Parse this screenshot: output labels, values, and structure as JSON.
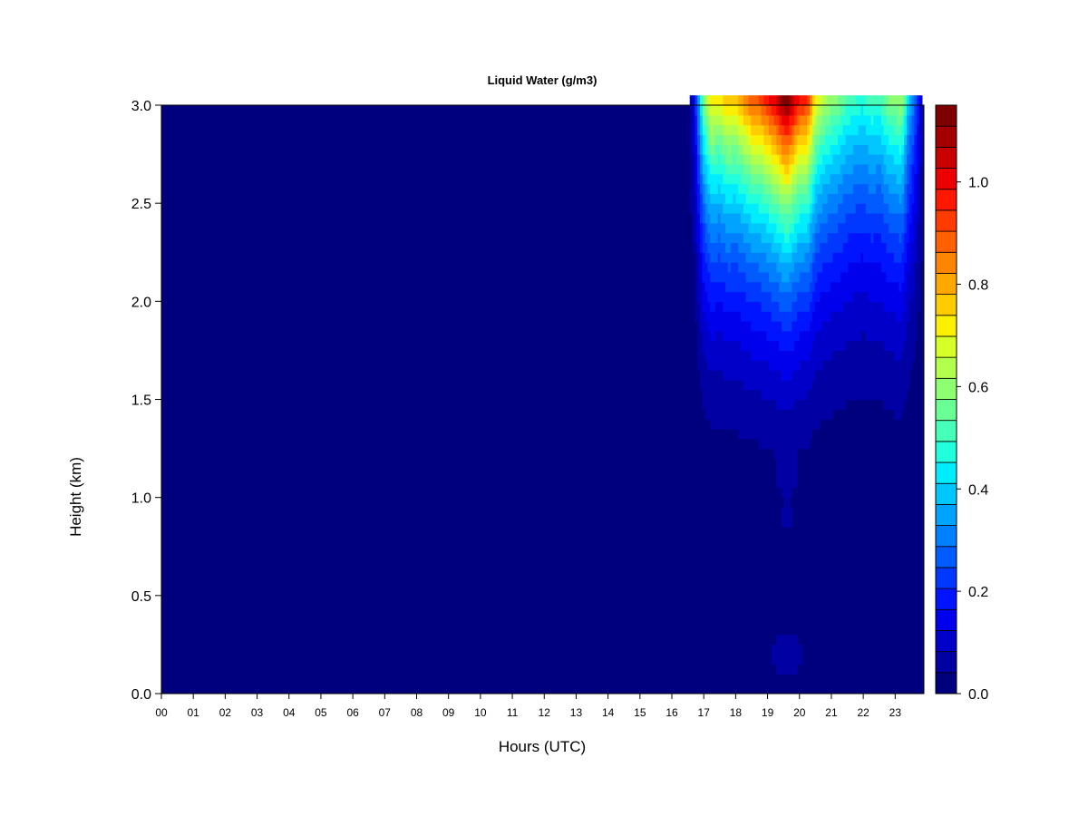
{
  "chart_data": {
    "type": "heatmap",
    "title": "Liquid Water (g/m3)",
    "xlabel": "Hours (UTC)",
    "ylabel": "Height (km)",
    "xlim": [
      0,
      23.9
    ],
    "ylim": [
      0,
      3.0
    ],
    "x_ticks": [
      "00",
      "01",
      "02",
      "03",
      "04",
      "05",
      "06",
      "07",
      "08",
      "09",
      "10",
      "11",
      "12",
      "13",
      "14",
      "15",
      "16",
      "17",
      "18",
      "19",
      "20",
      "21",
      "22",
      "23"
    ],
    "y_ticks": [
      "0.0",
      "0.5",
      "1.0",
      "1.5",
      "2.0",
      "2.5",
      "3.0"
    ],
    "colorbar": {
      "range": [
        0,
        1.15
      ],
      "ticks": [
        0.0,
        0.2,
        0.4,
        0.6,
        0.8,
        1.0
      ],
      "tick_labels": [
        "0.0",
        "0.2",
        "0.4",
        "0.6",
        "0.8",
        "1.0"
      ],
      "colors": [
        "#00007f",
        "#0000a3",
        "#0000c8",
        "#0000ed",
        "#0014ff",
        "#0038ff",
        "#005cff",
        "#0080ff",
        "#00a4ff",
        "#00c8ff",
        "#00ecff",
        "#22ffdd",
        "#46ffb8",
        "#6aff94",
        "#8eff70",
        "#b2ff4c",
        "#d6ff28",
        "#fbf004",
        "#ffcc00",
        "#ffa800",
        "#ff8400",
        "#ff6000",
        "#ff3c00",
        "#ff1800",
        "#ed0000",
        "#c80000",
        "#a40000",
        "#7f0000"
      ]
    },
    "cloud_columns": [
      {
        "hour": 16.55,
        "top": 0.06
      },
      {
        "hour": 16.7,
        "top": 0.12
      },
      {
        "hour": 16.85,
        "top": 0.35
      },
      {
        "hour": 17.0,
        "top": 0.55
      },
      {
        "hour": 17.25,
        "top": 0.72
      },
      {
        "hour": 17.5,
        "top": 0.68
      },
      {
        "hour": 17.75,
        "top": 0.76
      },
      {
        "hour": 18.0,
        "top": 0.74
      },
      {
        "hour": 18.25,
        "top": 0.8
      },
      {
        "hour": 18.5,
        "top": 0.86
      },
      {
        "hour": 18.75,
        "top": 0.88
      },
      {
        "hour": 19.0,
        "top": 0.94
      },
      {
        "hour": 19.25,
        "top": 1.0
      },
      {
        "hour": 19.5,
        "top": 1.1
      },
      {
        "hour": 19.62,
        "top": 1.12
      },
      {
        "hour": 19.75,
        "top": 1.06
      },
      {
        "hour": 20.0,
        "top": 0.94
      },
      {
        "hour": 20.25,
        "top": 0.92
      },
      {
        "hour": 20.5,
        "top": 0.7
      },
      {
        "hour": 20.75,
        "top": 0.62
      },
      {
        "hour": 21.0,
        "top": 0.58
      },
      {
        "hour": 21.25,
        "top": 0.55
      },
      {
        "hour": 21.5,
        "top": 0.5
      },
      {
        "hour": 21.75,
        "top": 0.48
      },
      {
        "hour": 22.0,
        "top": 0.46
      },
      {
        "hour": 22.25,
        "top": 0.5
      },
      {
        "hour": 22.5,
        "top": 0.48
      },
      {
        "hour": 22.75,
        "top": 0.55
      },
      {
        "hour": 23.0,
        "top": 0.58
      },
      {
        "hour": 23.2,
        "top": 0.6
      },
      {
        "hour": 23.4,
        "top": 0.4
      },
      {
        "hour": 23.6,
        "top": 0.28
      },
      {
        "hour": 23.8,
        "top": 0.12
      }
    ]
  }
}
